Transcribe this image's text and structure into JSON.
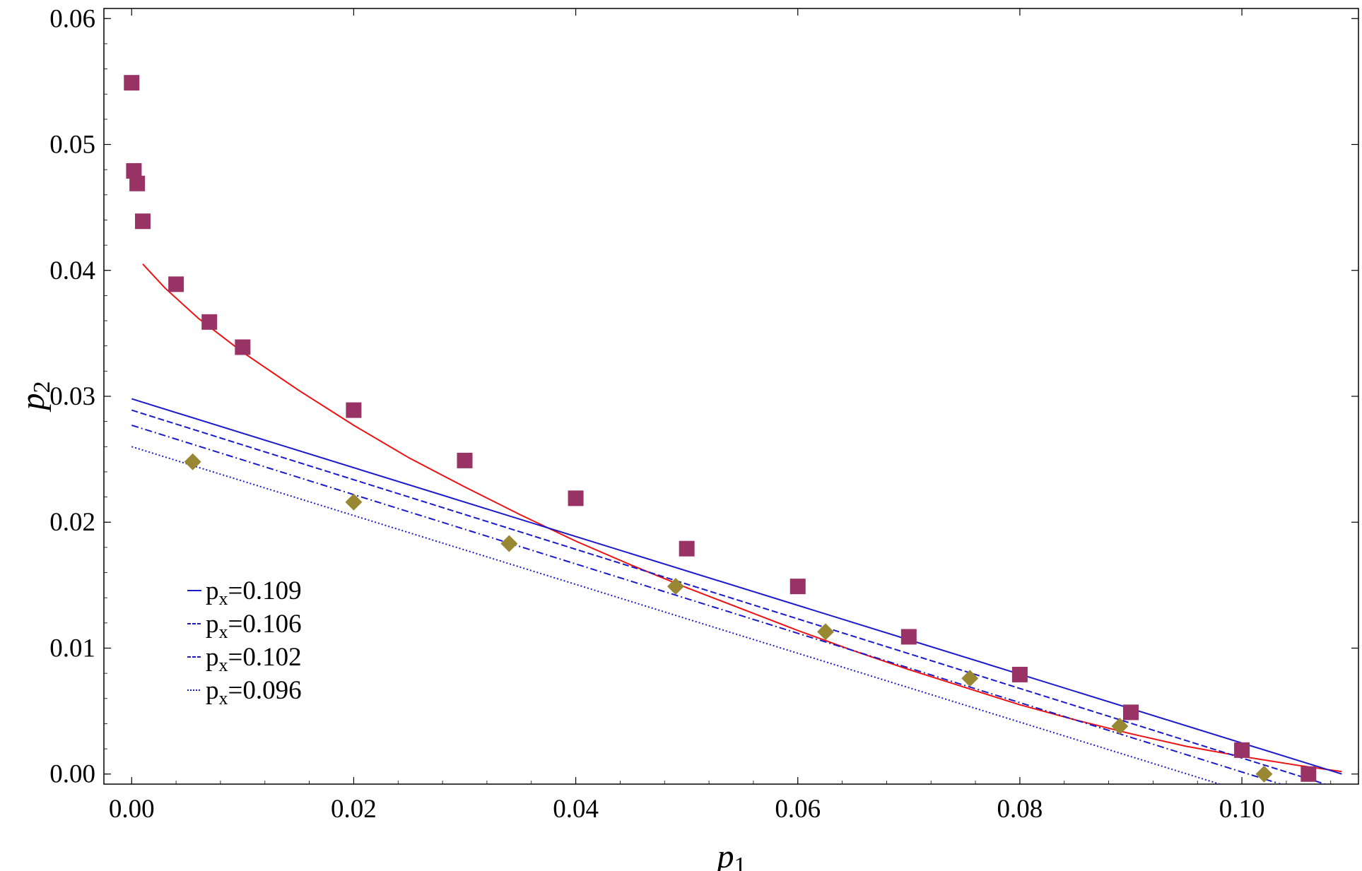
{
  "chart_data": {
    "type": "scatter",
    "title": "",
    "xlabel": "p",
    "xlabel_sub": "1",
    "ylabel": "p",
    "ylabel_sub": "2",
    "xlim": [
      -0.0025,
      0.1105
    ],
    "ylim": [
      -0.0008,
      0.0608
    ],
    "xticks": [
      {
        "v": 0.0,
        "label": "0.00"
      },
      {
        "v": 0.02,
        "label": "0.02"
      },
      {
        "v": 0.04,
        "label": "0.04"
      },
      {
        "v": 0.06,
        "label": "0.06"
      },
      {
        "v": 0.08,
        "label": "0.08"
      },
      {
        "v": 0.1,
        "label": "0.10"
      }
    ],
    "yticks": [
      {
        "v": 0.0,
        "label": "0.00"
      },
      {
        "v": 0.01,
        "label": "0.01"
      },
      {
        "v": 0.02,
        "label": "0.02"
      },
      {
        "v": 0.03,
        "label": "0.03"
      },
      {
        "v": 0.04,
        "label": "0.04"
      },
      {
        "v": 0.05,
        "label": "0.05"
      },
      {
        "v": 0.06,
        "label": "0.06"
      }
    ],
    "grid": false,
    "legend_position": "bottom-left",
    "series": [
      {
        "name": "square-markers",
        "kind": "scatter",
        "marker": "square",
        "color": "#993366",
        "points": [
          [
            0.0,
            0.0549
          ],
          [
            0.0002,
            0.0479
          ],
          [
            0.0005,
            0.0469
          ],
          [
            0.001,
            0.0439
          ],
          [
            0.004,
            0.0389
          ],
          [
            0.007,
            0.0359
          ],
          [
            0.01,
            0.0339
          ],
          [
            0.02,
            0.0289
          ],
          [
            0.03,
            0.0249
          ],
          [
            0.04,
            0.0219
          ],
          [
            0.05,
            0.0179
          ],
          [
            0.06,
            0.0149
          ],
          [
            0.07,
            0.0109
          ],
          [
            0.08,
            0.0079
          ],
          [
            0.09,
            0.0049
          ],
          [
            0.1,
            0.0019
          ],
          [
            0.106,
            0.0
          ]
        ]
      },
      {
        "name": "diamond-markers",
        "kind": "scatter",
        "marker": "diamond",
        "color": "#998833",
        "points": [
          [
            0.0055,
            0.0248
          ],
          [
            0.02,
            0.0216
          ],
          [
            0.034,
            0.0183
          ],
          [
            0.049,
            0.0149
          ],
          [
            0.0625,
            0.0113
          ],
          [
            0.0755,
            0.0076
          ],
          [
            0.089,
            0.0038
          ],
          [
            0.102,
            0.0
          ]
        ]
      },
      {
        "name": "red-curve",
        "kind": "line",
        "color": "#ee1111",
        "dash": "solid",
        "points": [
          [
            0.001,
            0.0405
          ],
          [
            0.003,
            0.0386
          ],
          [
            0.006,
            0.0362
          ],
          [
            0.01,
            0.0335
          ],
          [
            0.015,
            0.0305
          ],
          [
            0.02,
            0.0277
          ],
          [
            0.025,
            0.0251
          ],
          [
            0.03,
            0.0228
          ],
          [
            0.035,
            0.0206
          ],
          [
            0.04,
            0.0185
          ],
          [
            0.045,
            0.0166
          ],
          [
            0.05,
            0.0148
          ],
          [
            0.055,
            0.0131
          ],
          [
            0.06,
            0.0114
          ],
          [
            0.065,
            0.0098
          ],
          [
            0.07,
            0.0083
          ],
          [
            0.075,
            0.0069
          ],
          [
            0.08,
            0.0055
          ],
          [
            0.085,
            0.0043
          ],
          [
            0.09,
            0.0032
          ],
          [
            0.095,
            0.0022
          ],
          [
            0.1,
            0.0014
          ],
          [
            0.105,
            0.0007
          ],
          [
            0.109,
            0.0002
          ]
        ]
      },
      {
        "name": "p_x=0.109",
        "kind": "line",
        "color": "#1a1acc",
        "dash": "solid",
        "points": [
          [
            0.0,
            0.0298
          ],
          [
            0.109,
            0.0
          ]
        ]
      },
      {
        "name": "p_x=0.106",
        "kind": "line",
        "color": "#1a1acc",
        "dash": "dashed",
        "points": [
          [
            0.0,
            0.0289
          ],
          [
            0.1075,
            -0.0008
          ]
        ]
      },
      {
        "name": "p_x=0.102",
        "kind": "line",
        "color": "#1a1acc",
        "dash": "dashdot",
        "points": [
          [
            0.0,
            0.0277
          ],
          [
            0.1035,
            -0.0008
          ]
        ]
      },
      {
        "name": "p_x=0.096",
        "kind": "line",
        "color": "#1a1acc",
        "dash": "dotted",
        "points": [
          [
            0.0,
            0.026
          ],
          [
            0.098,
            -0.0008
          ]
        ]
      }
    ],
    "legend": [
      {
        "series": "p_x=0.109",
        "base": "p",
        "sub": "x",
        "rest": "=0.109",
        "dash": "solid"
      },
      {
        "series": "p_x=0.106",
        "base": "p",
        "sub": "x",
        "rest": "=0.106",
        "dash": "dashed"
      },
      {
        "series": "p_x=0.102",
        "base": "p",
        "sub": "x",
        "rest": "=0.102",
        "dash": "dashdot"
      },
      {
        "series": "p_x=0.096",
        "base": "p",
        "sub": "x",
        "rest": "=0.096",
        "dash": "dotted"
      }
    ]
  }
}
